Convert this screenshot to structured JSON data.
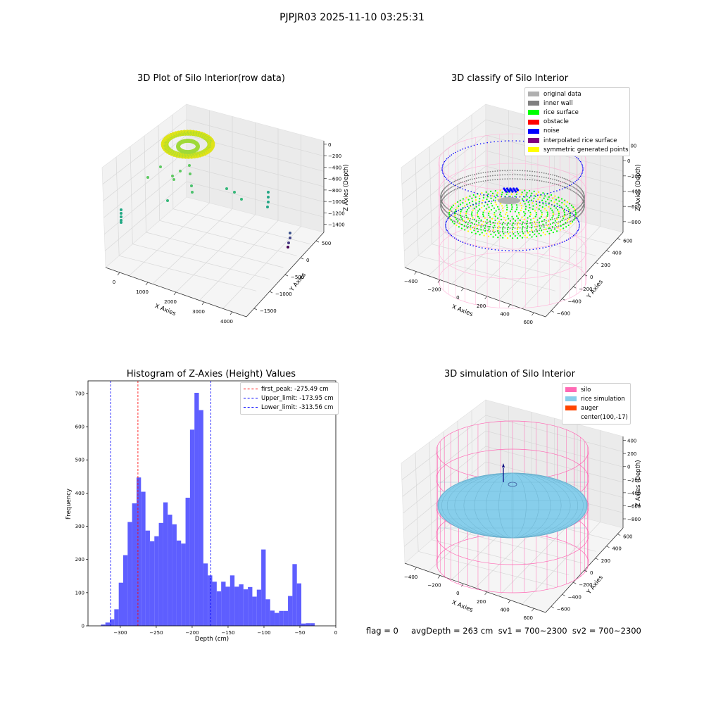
{
  "suptitle": "PJPJR03 2025-11-10 03:25:31",
  "footer": "flag = 0     avgDepth = 263 cm  sv1 = 700~2300  sv2 = 700~2300",
  "panels": {
    "raw": {
      "title": "3D Plot of Silo Interior(row data)",
      "xlabel": "X Axies",
      "ylabel": "Y Axies",
      "zlabel": "Z Axies (Depth)",
      "xticks": [
        "0",
        "1000",
        "2000",
        "3000",
        "4000"
      ],
      "yticks": [
        "500",
        "0",
        "−500",
        "−1000",
        "−1500"
      ],
      "zticks": [
        "0",
        "−200",
        "−400",
        "−600",
        "−800",
        "−1000",
        "−1200",
        "−1400"
      ]
    },
    "classify": {
      "title": "3D classify of Silo Interior",
      "xlabel": "X Axies",
      "ylabel": "Y Axies",
      "zlabel": "Z Axies (Depth)",
      "xticks": [
        "−400",
        "−200",
        "0",
        "200",
        "400",
        "600"
      ],
      "yticks": [
        "600",
        "400",
        "200",
        "0",
        "−200",
        "−400",
        "−600"
      ],
      "zticks": [
        "200",
        "0",
        "−200",
        "−400",
        "−600",
        "−800"
      ],
      "legend": [
        {
          "label": "original data",
          "color": "#b0b0b0"
        },
        {
          "label": "inner wall",
          "color": "#808080"
        },
        {
          "label": "rice surface",
          "color": "#00ff00"
        },
        {
          "label": "obstacle",
          "color": "#ff0000"
        },
        {
          "label": "noise",
          "color": "#0000ff"
        },
        {
          "label": "interpolated rice surface",
          "color": "#800080"
        },
        {
          "label": "symmetric generated points",
          "color": "#ffff00"
        }
      ]
    },
    "simulation": {
      "title": "3D simulation of Silo Interior",
      "xlabel": "X Axies",
      "ylabel": "Y Axies",
      "zlabel": "Z Axies (Depth)",
      "xticks": [
        "−400",
        "−200",
        "0",
        "200",
        "400",
        "600"
      ],
      "yticks": [
        "600",
        "400",
        "200",
        "0",
        "−200",
        "−400",
        "−600"
      ],
      "zticks": [
        "400",
        "200",
        "0",
        "−200",
        "−400",
        "−600",
        "−800"
      ],
      "legend": [
        {
          "label": "silo",
          "color": "#ff69b4"
        },
        {
          "label": "rice simulation",
          "color": "#87ceeb"
        },
        {
          "label": "auger",
          "color": "#ff4500"
        },
        {
          "label": "center(100,-17)",
          "color": ""
        }
      ]
    }
  },
  "chart_data": {
    "type": "bar",
    "title": "Histogram of Z-Axies (Height) Values",
    "xlabel": "Depth (cm)",
    "ylabel": "Frequency",
    "xlim": [
      -345,
      0
    ],
    "ylim": [
      0,
      738
    ],
    "xticks": [
      -300,
      -250,
      -200,
      -150,
      -100,
      -50,
      0
    ],
    "xtick_labels": [
      "−300",
      "−250",
      "−200",
      "−150",
      "−100",
      "−50",
      "0"
    ],
    "yticks": [
      0,
      100,
      200,
      300,
      400,
      500,
      600,
      700
    ],
    "bin_start": -327,
    "bin_width": 6.2,
    "values": [
      4,
      10,
      20,
      50,
      130,
      213,
      313,
      369,
      447,
      404,
      287,
      255,
      270,
      310,
      372,
      335,
      306,
      257,
      248,
      386,
      591,
      702,
      650,
      188,
      152,
      133,
      104,
      133,
      118,
      152,
      118,
      125,
      110,
      117,
      88,
      109,
      230,
      80,
      46,
      39,
      45,
      45,
      90,
      186,
      128,
      7,
      8,
      8
    ],
    "color": "#5050ff",
    "vlines": [
      {
        "label": "first_peak: -275.49 cm",
        "value": -275.49,
        "color": "#ff0000"
      },
      {
        "label": "Upper_limit: -173.95 cm",
        "value": -173.95,
        "color": "#0000ff"
      },
      {
        "label": "Lower_limit: -313.56 cm",
        "value": -313.56,
        "color": "#0000ff"
      }
    ],
    "legend_position": "upper right"
  }
}
